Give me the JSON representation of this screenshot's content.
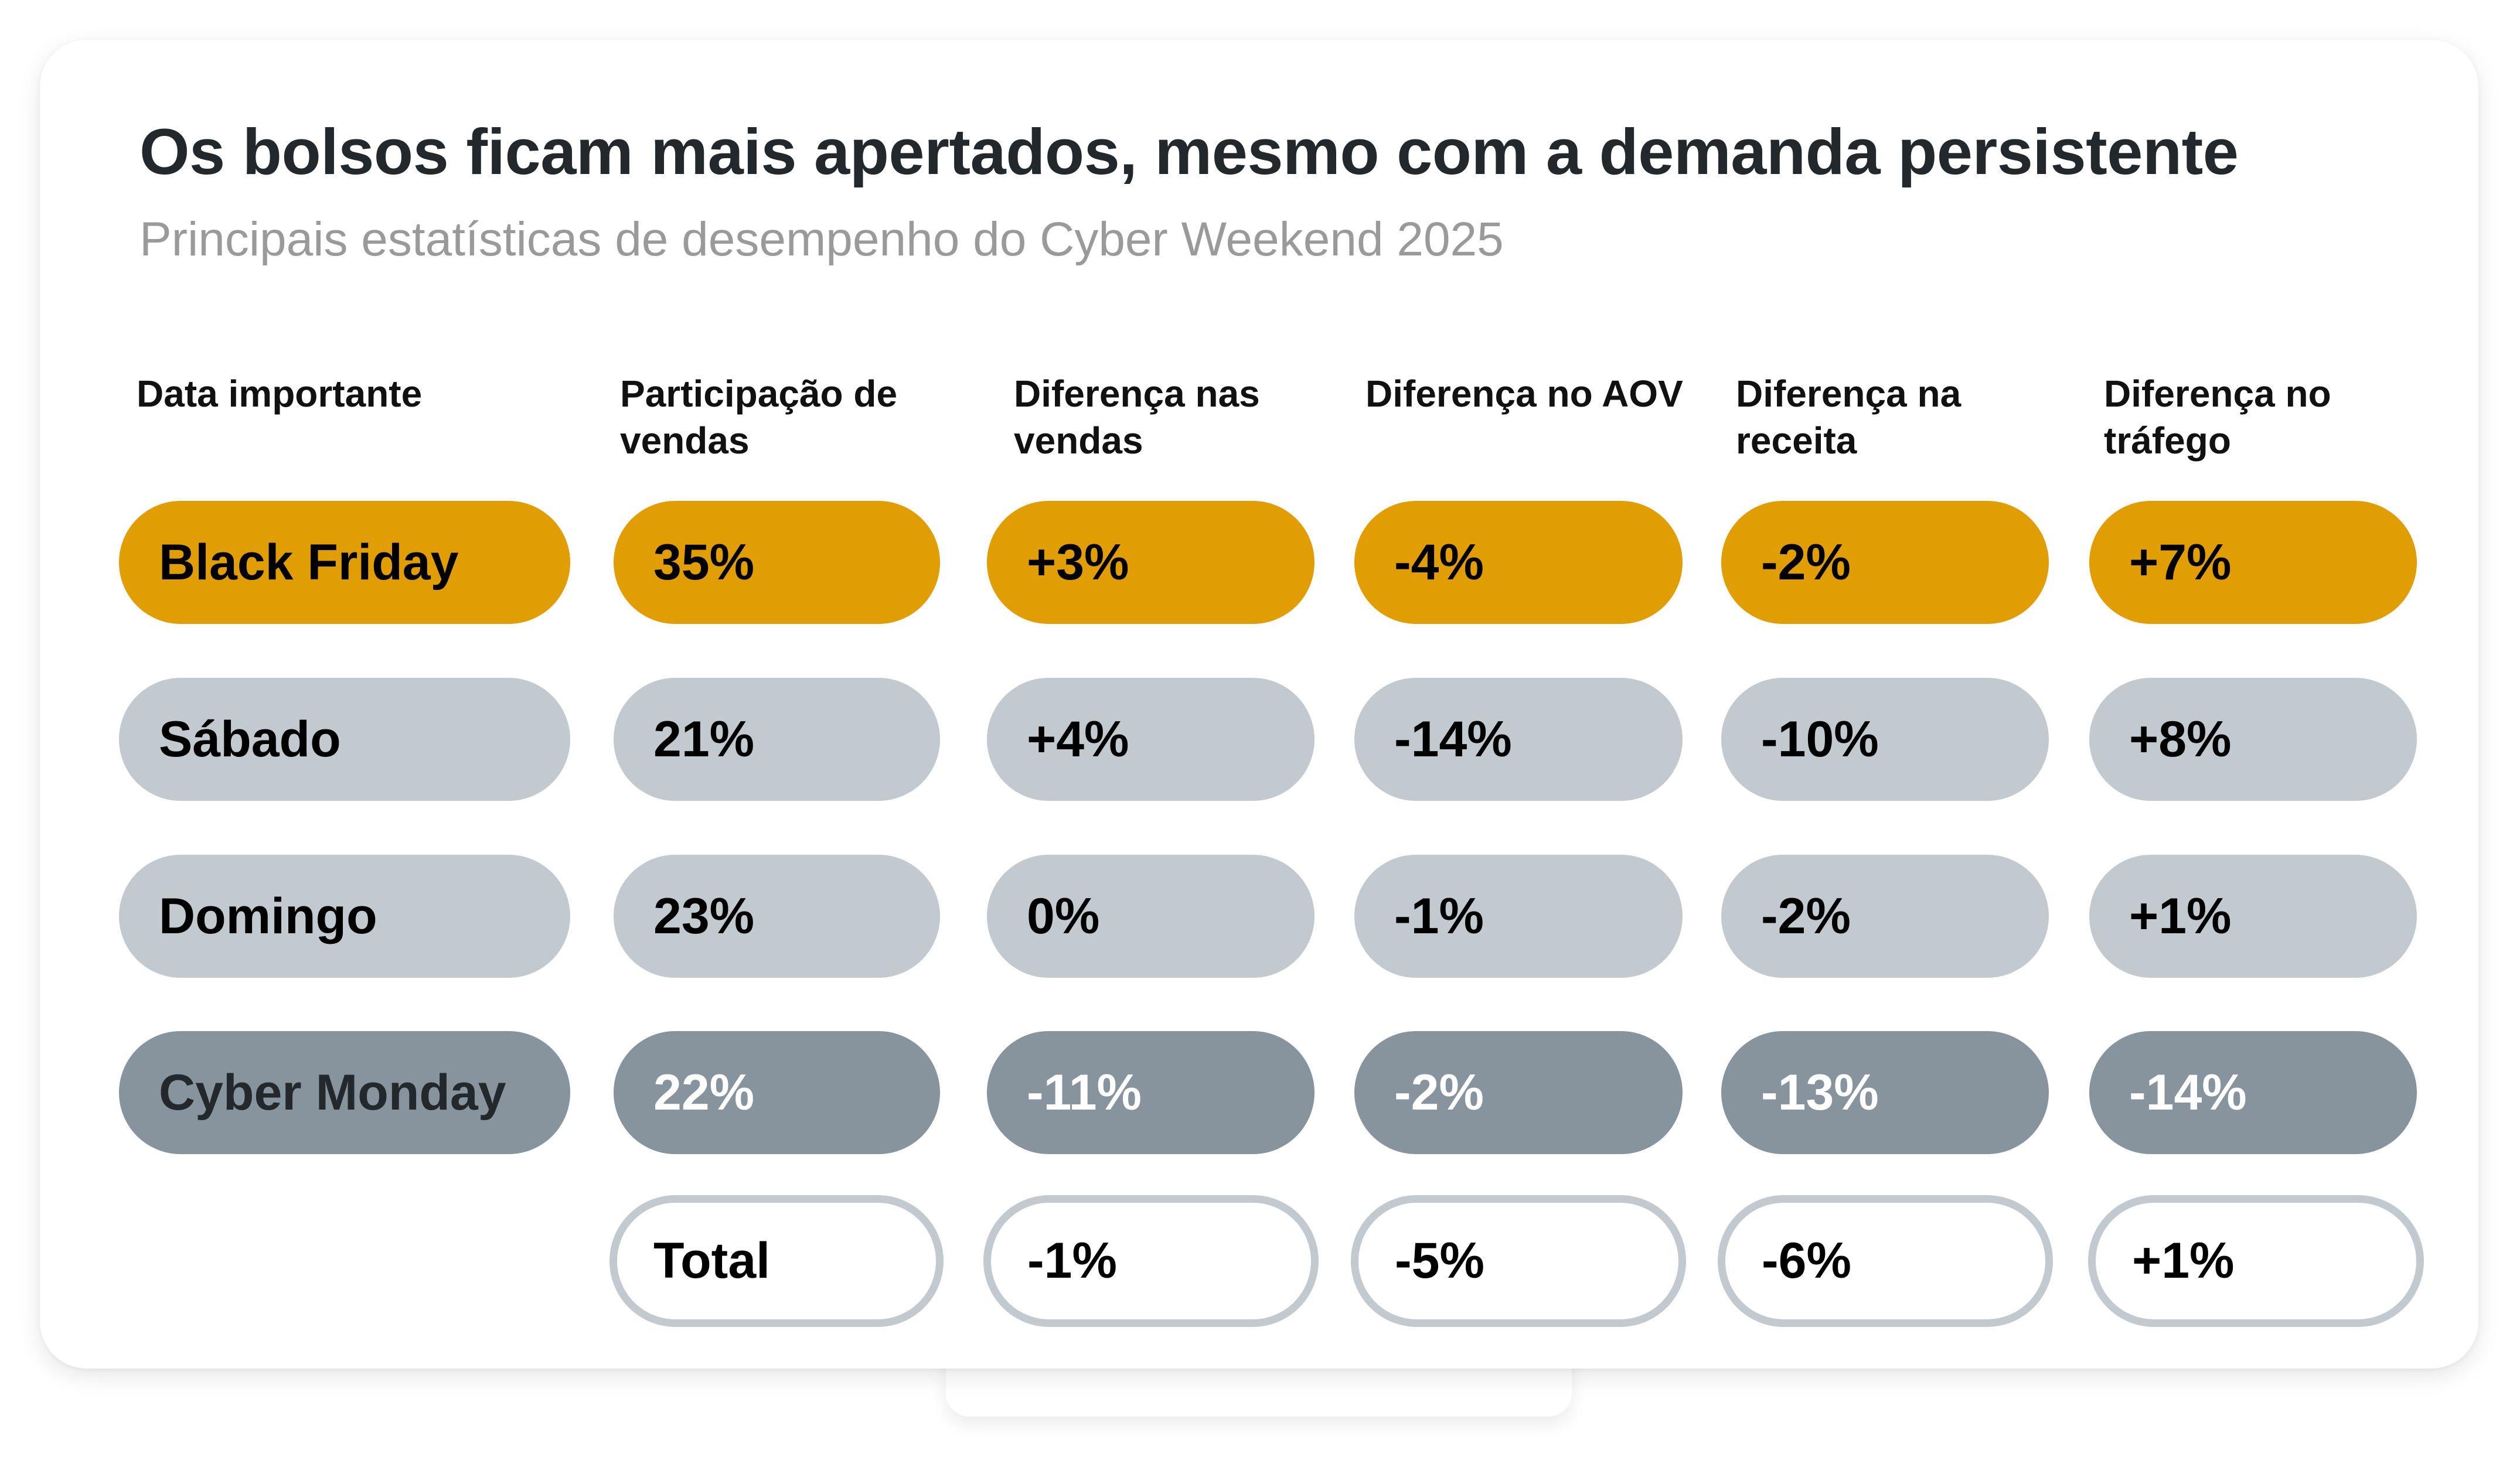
{
  "header": {
    "title": "Os bolsos ficam mais apertados, mesmo com a demanda persistente",
    "subtitle": "Principais estatísticas de desempenho do Cyber Weekend 2025"
  },
  "colors": {
    "black_friday": "#e09d04",
    "weekend": "#c2c9cf",
    "cyber_monday": "#87949e",
    "total_border": "#c2c9cf"
  },
  "table": {
    "columns": [
      {
        "line1": "Data importante",
        "line2": ""
      },
      {
        "line1": "Participação de",
        "line2": "vendas"
      },
      {
        "line1": "Diferença nas",
        "line2": "vendas"
      },
      {
        "line1": "Diferença no AOV",
        "line2": ""
      },
      {
        "line1": "Diferença na",
        "line2": "receita"
      },
      {
        "line1": "Diferença no",
        "line2": "tráfego"
      }
    ],
    "rows": [
      {
        "label": "Black Friday",
        "values": [
          "35%",
          "+3%",
          "-4%",
          "-2%",
          "+7%"
        ]
      },
      {
        "label": "Sábado",
        "values": [
          "21%",
          "+4%",
          "-14%",
          "-10%",
          "+8%"
        ]
      },
      {
        "label": "Domingo",
        "values": [
          "23%",
          "0%",
          "-1%",
          "-2%",
          "+1%"
        ]
      },
      {
        "label": "Cyber Monday",
        "values": [
          "22%",
          "-11%",
          "-2%",
          "-13%",
          "-14%"
        ]
      }
    ],
    "total": {
      "label": "Total",
      "values": [
        "-1%",
        "-5%",
        "-6%",
        "+1%"
      ]
    }
  }
}
